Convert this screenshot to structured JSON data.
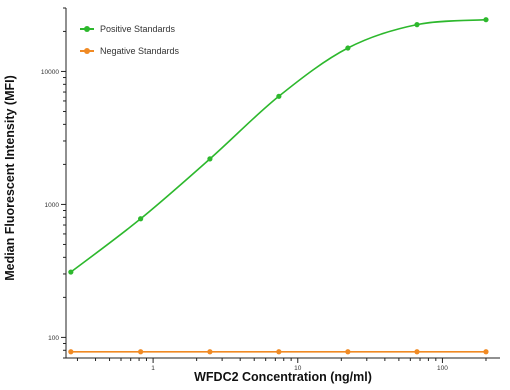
{
  "chart_data": {
    "type": "line",
    "xlabel": "WFDC2 Concentration (ng/ml)",
    "ylabel": "Median Fluorescent Intensity (MFI)",
    "xscale": "log",
    "yscale": "log",
    "xlim": [
      0.25,
      250
    ],
    "ylim": [
      70,
      30000
    ],
    "x_ticks": [
      1,
      10,
      100
    ],
    "x_tick_labels": [
      "1",
      "10",
      "100"
    ],
    "y_ticks": [
      100,
      1000,
      10000
    ],
    "y_tick_labels": [
      "100",
      "1000",
      "10000"
    ],
    "grid": false,
    "legend_position": "top-left",
    "series": [
      {
        "name": "Positive Standards",
        "color": "#2db82d",
        "x": [
          0.27,
          0.82,
          2.47,
          7.4,
          22.2,
          66.7,
          200
        ],
        "y": [
          310,
          780,
          2200,
          6500,
          15000,
          22500,
          24500
        ]
      },
      {
        "name": "Negative Standards",
        "color": "#f08a24",
        "x": [
          0.27,
          0.82,
          2.47,
          7.4,
          22.2,
          66.7,
          200
        ],
        "y": [
          78,
          78,
          78,
          78,
          78,
          78,
          78
        ]
      }
    ]
  }
}
